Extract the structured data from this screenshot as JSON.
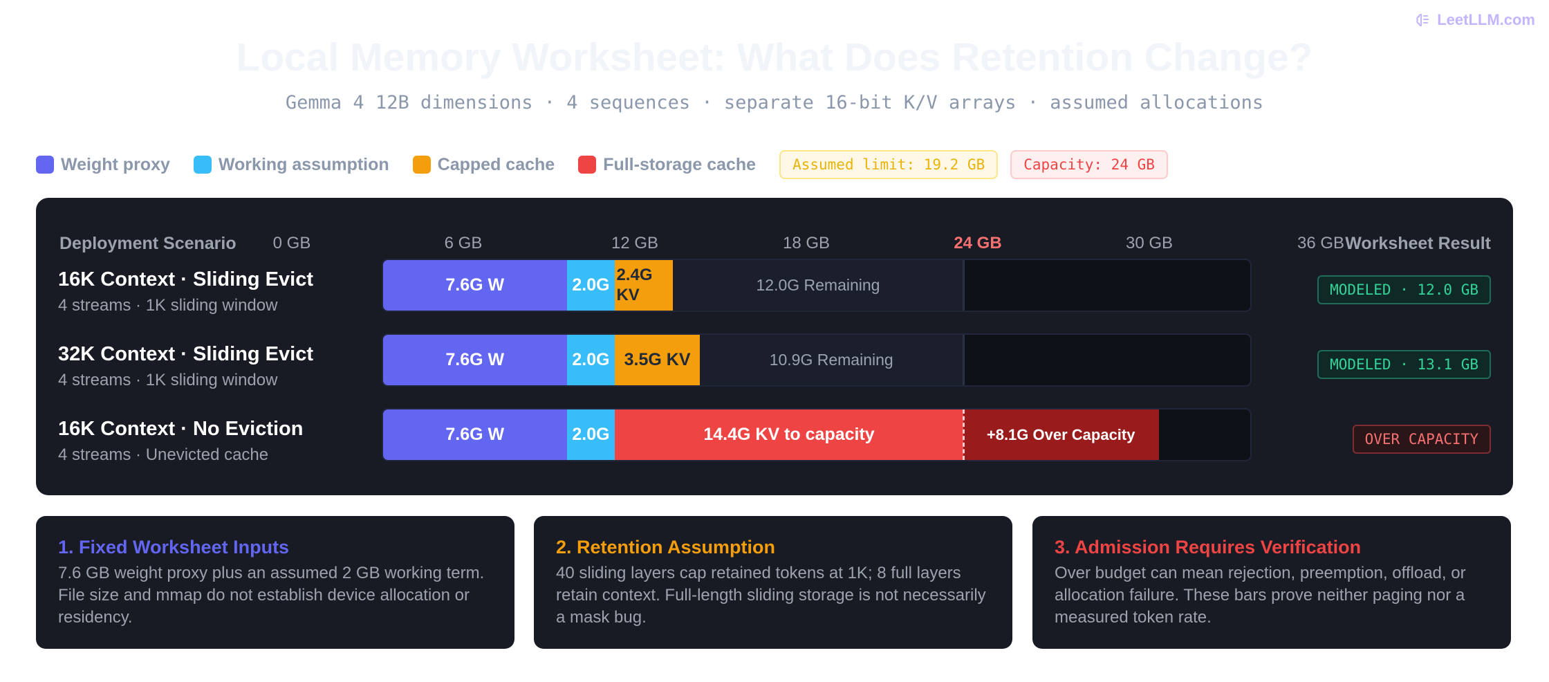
{
  "brand": {
    "name": "LeetLLM.com"
  },
  "title": "Local Memory Worksheet: What Does Retention Change?",
  "subtitle": "Gemma 4 12B dimensions · 4 sequences · separate 16-bit K/V arrays · assumed allocations",
  "legend": {
    "items": [
      {
        "label": "Weight proxy",
        "color": "#6366f1"
      },
      {
        "label": "Working assumption",
        "color": "#38bdf8"
      },
      {
        "label": "Capped cache",
        "color": "#f59e0b"
      },
      {
        "label": "Full-storage cache",
        "color": "#ef4444"
      }
    ],
    "limit_pill": "Assumed limit: 19.2 GB",
    "capacity_pill": "Capacity: 24 GB"
  },
  "panel": {
    "scenario_header": "Deployment Scenario",
    "result_header": "Worksheet Result"
  },
  "chart_data": {
    "type": "bar",
    "orientation": "horizontal",
    "stacked": true,
    "xlim": [
      0,
      36
    ],
    "unit": "GB",
    "tick_labels": [
      "0 GB",
      "6 GB",
      "12 GB",
      "18 GB",
      "24 GB",
      "30 GB",
      "36 GB"
    ],
    "capacity": 24,
    "capacity_label": "24 GB",
    "rows": [
      {
        "title": "16K Context · Sliding Evict",
        "subtitle": "4 streams · 1K sliding window",
        "result": "MODELED · 12.0 GB",
        "result_status": "ok",
        "segments": [
          {
            "kind": "weight",
            "value": 7.6,
            "label": "7.6G W",
            "color": "#6366f1"
          },
          {
            "kind": "working",
            "value": 2.0,
            "label": "2.0G",
            "color": "#38bdf8"
          },
          {
            "kind": "capped",
            "value": 2.4,
            "label": "2.4G KV",
            "color": "#f59e0b"
          },
          {
            "kind": "remaining",
            "value": 12.0,
            "label": "12.0G Remaining",
            "color": "#1b1e2b"
          }
        ]
      },
      {
        "title": "32K Context · Sliding Evict",
        "subtitle": "4 streams · 1K sliding window",
        "result": "MODELED · 13.1 GB",
        "result_status": "ok",
        "segments": [
          {
            "kind": "weight",
            "value": 7.6,
            "label": "7.6G W",
            "color": "#6366f1"
          },
          {
            "kind": "working",
            "value": 2.0,
            "label": "2.0G",
            "color": "#38bdf8"
          },
          {
            "kind": "capped",
            "value": 3.5,
            "label": "3.5G KV",
            "color": "#f59e0b"
          },
          {
            "kind": "remaining",
            "value": 10.9,
            "label": "10.9G Remaining",
            "color": "#1b1e2b"
          }
        ]
      },
      {
        "title": "16K Context · No Eviction",
        "subtitle": "4 streams · Unevicted cache",
        "result": "OVER CAPACITY",
        "result_status": "over",
        "segments": [
          {
            "kind": "weight",
            "value": 7.6,
            "label": "7.6G W",
            "color": "#6366f1"
          },
          {
            "kind": "working",
            "value": 2.0,
            "label": "2.0G",
            "color": "#38bdf8"
          },
          {
            "kind": "full",
            "value": 14.4,
            "label": "14.4G KV to capacity",
            "color": "#ef4444"
          },
          {
            "kind": "over",
            "value": 8.1,
            "label": "+8.1G Over Capacity",
            "color": "#991b1b"
          }
        ]
      }
    ]
  },
  "cards": [
    {
      "title": "1. Fixed Worksheet Inputs",
      "color": "#6366f1",
      "body": "7.6 GB weight proxy plus an assumed 2 GB working term. File size and mmap do not establish device allocation or residency."
    },
    {
      "title": "2. Retention Assumption",
      "color": "#f59e0b",
      "body": "40 sliding layers cap retained tokens at 1K; 8 full layers retain context. Full-length sliding storage is not necessarily a mask bug."
    },
    {
      "title": "3. Admission Requires Verification",
      "color": "#ef4444",
      "body": "Over budget can mean rejection, preemption, offload, or allocation failure. These bars prove neither paging nor a measured token rate."
    }
  ]
}
